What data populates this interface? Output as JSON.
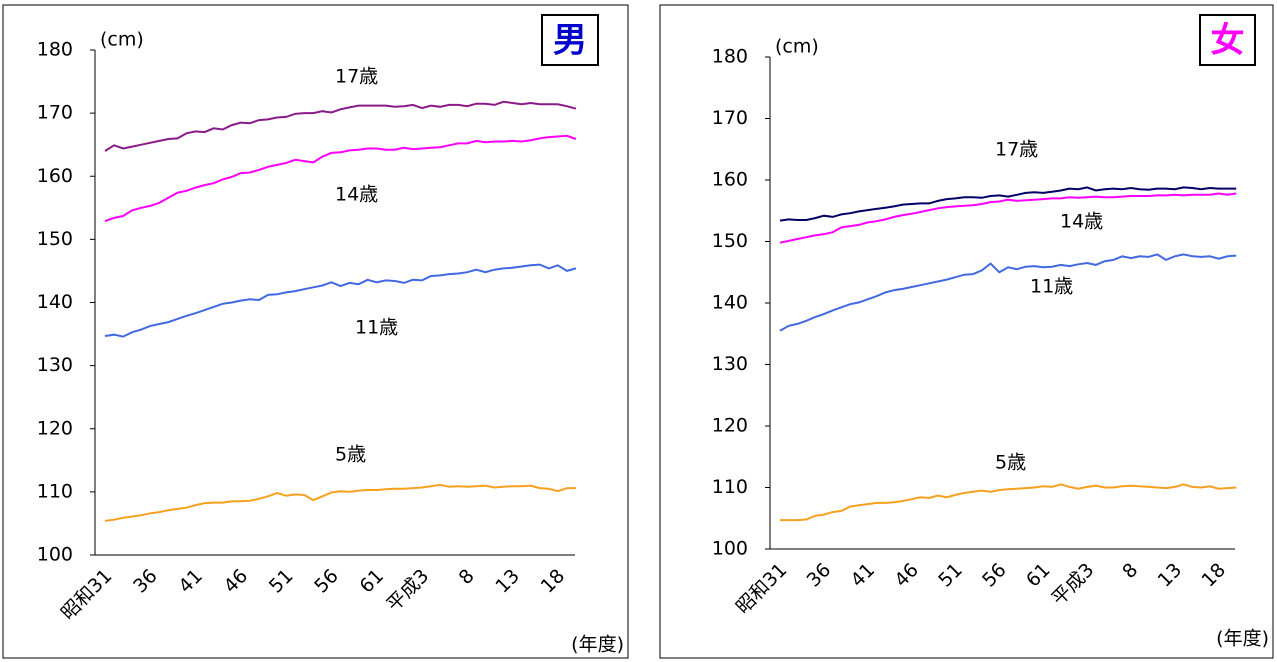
{
  "chart_data": [
    {
      "type": "line",
      "title": "男",
      "title_color": "#0000cc",
      "y_label": "(cm)",
      "x_label": "(年度)",
      "categories": [
        "昭和31",
        null,
        null,
        null,
        null,
        "36",
        null,
        null,
        null,
        null,
        "41",
        null,
        null,
        null,
        null,
        "46",
        null,
        null,
        null,
        null,
        "51",
        null,
        null,
        null,
        null,
        "56",
        null,
        null,
        null,
        null,
        "61",
        null,
        null,
        null,
        null,
        "平成3",
        null,
        null,
        null,
        null,
        "8",
        null,
        null,
        null,
        null,
        "13",
        null,
        null,
        null,
        null,
        "18",
        null,
        null
      ],
      "ylim": [
        100,
        180
      ],
      "yticks": [
        100,
        110,
        120,
        130,
        140,
        150,
        160,
        170,
        180
      ],
      "series": [
        {
          "name": "17歳",
          "color": "#8b1a89",
          "values": [
            164.0,
            164.9,
            164.4,
            164.7,
            165.0,
            165.3,
            165.6,
            165.9,
            166.0,
            166.8,
            167.1,
            167.0,
            167.6,
            167.4,
            168.1,
            168.5,
            168.4,
            168.9,
            169.0,
            169.3,
            169.4,
            169.9,
            170.0,
            170.0,
            170.3,
            170.1,
            170.6,
            170.9,
            171.2,
            171.2,
            171.2,
            171.2,
            171.0,
            171.1,
            171.3,
            170.8,
            171.2,
            171.0,
            171.3,
            171.3,
            171.1,
            171.5,
            171.5,
            171.3,
            171.8,
            171.6,
            171.4,
            171.6,
            171.4,
            171.4,
            171.4,
            171.1,
            170.7
          ]
        },
        {
          "name": "14歳",
          "color": "#ff00ff",
          "values": [
            152.9,
            153.4,
            153.7,
            154.6,
            155.0,
            155.3,
            155.8,
            156.6,
            157.4,
            157.7,
            158.2,
            158.6,
            158.9,
            159.5,
            159.9,
            160.5,
            160.6,
            161.0,
            161.5,
            161.8,
            162.1,
            162.6,
            162.4,
            162.2,
            163.1,
            163.7,
            163.8,
            164.1,
            164.2,
            164.4,
            164.4,
            164.2,
            164.2,
            164.5,
            164.3,
            164.4,
            164.5,
            164.6,
            164.9,
            165.2,
            165.2,
            165.6,
            165.4,
            165.5,
            165.5,
            165.6,
            165.5,
            165.7,
            166.0,
            166.2,
            166.3,
            166.4,
            165.9
          ]
        },
        {
          "name": "11歳",
          "color": "#4169e1",
          "values": [
            134.7,
            134.9,
            134.6,
            135.3,
            135.7,
            136.3,
            136.6,
            136.9,
            137.4,
            137.9,
            138.3,
            138.8,
            139.3,
            139.8,
            140.0,
            140.3,
            140.5,
            140.4,
            141.2,
            141.3,
            141.6,
            141.8,
            142.1,
            142.4,
            142.7,
            143.2,
            142.6,
            143.1,
            142.9,
            143.6,
            143.2,
            143.5,
            143.4,
            143.1,
            143.6,
            143.5,
            144.2,
            144.3,
            144.5,
            144.6,
            144.8,
            145.2,
            144.8,
            145.2,
            145.4,
            145.5,
            145.7,
            145.9,
            146.0,
            145.4,
            145.9,
            145.0,
            145.4
          ]
        },
        {
          "name": "5歳",
          "color": "#f7a020",
          "values": [
            105.4,
            105.6,
            105.9,
            106.1,
            106.3,
            106.6,
            106.8,
            107.1,
            107.3,
            107.5,
            107.9,
            108.2,
            108.3,
            108.3,
            108.5,
            108.5,
            108.6,
            108.9,
            109.3,
            109.8,
            109.4,
            109.6,
            109.5,
            108.7,
            109.3,
            109.9,
            110.1,
            110.0,
            110.2,
            110.3,
            110.3,
            110.4,
            110.5,
            110.5,
            110.6,
            110.7,
            110.9,
            111.1,
            110.8,
            110.9,
            110.8,
            110.9,
            111.0,
            110.7,
            110.8,
            110.9,
            110.9,
            111.0,
            110.6,
            110.5,
            110.1,
            110.6,
            110.6
          ]
        }
      ]
    },
    {
      "type": "line",
      "title": "女",
      "title_color": "#ff00ff",
      "y_label": "(cm)",
      "x_label": "(年度)",
      "categories": [
        "昭和31",
        null,
        null,
        null,
        null,
        "36",
        null,
        null,
        null,
        null,
        "41",
        null,
        null,
        null,
        null,
        "46",
        null,
        null,
        null,
        null,
        "51",
        null,
        null,
        null,
        null,
        "56",
        null,
        null,
        null,
        null,
        "61",
        null,
        null,
        null,
        null,
        "平成3",
        null,
        null,
        null,
        null,
        "8",
        null,
        null,
        null,
        null,
        "13",
        null,
        null,
        null,
        null,
        "18",
        null,
        null
      ],
      "ylim": [
        100,
        180
      ],
      "yticks": [
        100,
        110,
        120,
        130,
        140,
        150,
        160,
        170,
        180
      ],
      "series": [
        {
          "name": "17歳",
          "color": "#000066",
          "values": [
            153.4,
            153.6,
            153.5,
            153.5,
            153.8,
            154.2,
            154.0,
            154.4,
            154.6,
            154.9,
            155.1,
            155.3,
            155.5,
            155.7,
            156.0,
            156.1,
            156.2,
            156.2,
            156.6,
            156.9,
            157.0,
            157.2,
            157.2,
            157.1,
            157.4,
            157.5,
            157.3,
            157.6,
            157.9,
            158.0,
            157.9,
            158.1,
            158.3,
            158.6,
            158.5,
            158.8,
            158.3,
            158.5,
            158.6,
            158.5,
            158.7,
            158.5,
            158.4,
            158.6,
            158.6,
            158.5,
            158.8,
            158.7,
            158.5,
            158.7,
            158.6,
            158.6,
            158.6
          ]
        },
        {
          "name": "14歳",
          "color": "#ff00ff",
          "values": [
            149.8,
            150.1,
            150.4,
            150.7,
            151.0,
            151.2,
            151.5,
            152.3,
            152.5,
            152.7,
            153.1,
            153.3,
            153.6,
            154.0,
            154.3,
            154.5,
            154.8,
            155.1,
            155.4,
            155.6,
            155.7,
            155.8,
            155.9,
            156.1,
            156.4,
            156.5,
            156.8,
            156.6,
            156.7,
            156.8,
            156.9,
            157.0,
            157.0,
            157.2,
            157.1,
            157.2,
            157.3,
            157.2,
            157.2,
            157.3,
            157.4,
            157.4,
            157.4,
            157.5,
            157.5,
            157.6,
            157.5,
            157.6,
            157.6,
            157.6,
            157.8,
            157.6,
            157.8
          ]
        },
        {
          "name": "11歳",
          "color": "#4169e1",
          "values": [
            135.5,
            136.3,
            136.6,
            137.1,
            137.7,
            138.2,
            138.8,
            139.3,
            139.8,
            140.1,
            140.6,
            141.1,
            141.7,
            142.1,
            142.3,
            142.6,
            142.9,
            143.2,
            143.5,
            143.8,
            144.2,
            144.6,
            144.7,
            145.3,
            146.4,
            145.0,
            145.8,
            145.5,
            145.9,
            146.0,
            145.8,
            145.9,
            146.2,
            146.0,
            146.3,
            146.5,
            146.2,
            146.8,
            147.0,
            147.6,
            147.3,
            147.6,
            147.5,
            147.9,
            147.0,
            147.6,
            147.9,
            147.6,
            147.5,
            147.6,
            147.2,
            147.6,
            147.7
          ]
        },
        {
          "name": "5歳",
          "color": "#f7a020",
          "values": [
            104.7,
            104.7,
            104.7,
            104.8,
            105.4,
            105.6,
            106.0,
            106.2,
            106.9,
            107.1,
            107.3,
            107.5,
            107.5,
            107.6,
            107.8,
            108.1,
            108.4,
            108.3,
            108.7,
            108.4,
            108.8,
            109.1,
            109.3,
            109.5,
            109.3,
            109.6,
            109.7,
            109.8,
            109.9,
            110.0,
            110.2,
            110.1,
            110.5,
            110.1,
            109.8,
            110.1,
            110.3,
            110.0,
            110.0,
            110.2,
            110.3,
            110.2,
            110.1,
            110.0,
            109.9,
            110.1,
            110.5,
            110.1,
            110.0,
            110.2,
            109.8,
            109.9,
            110.0
          ]
        }
      ]
    }
  ]
}
